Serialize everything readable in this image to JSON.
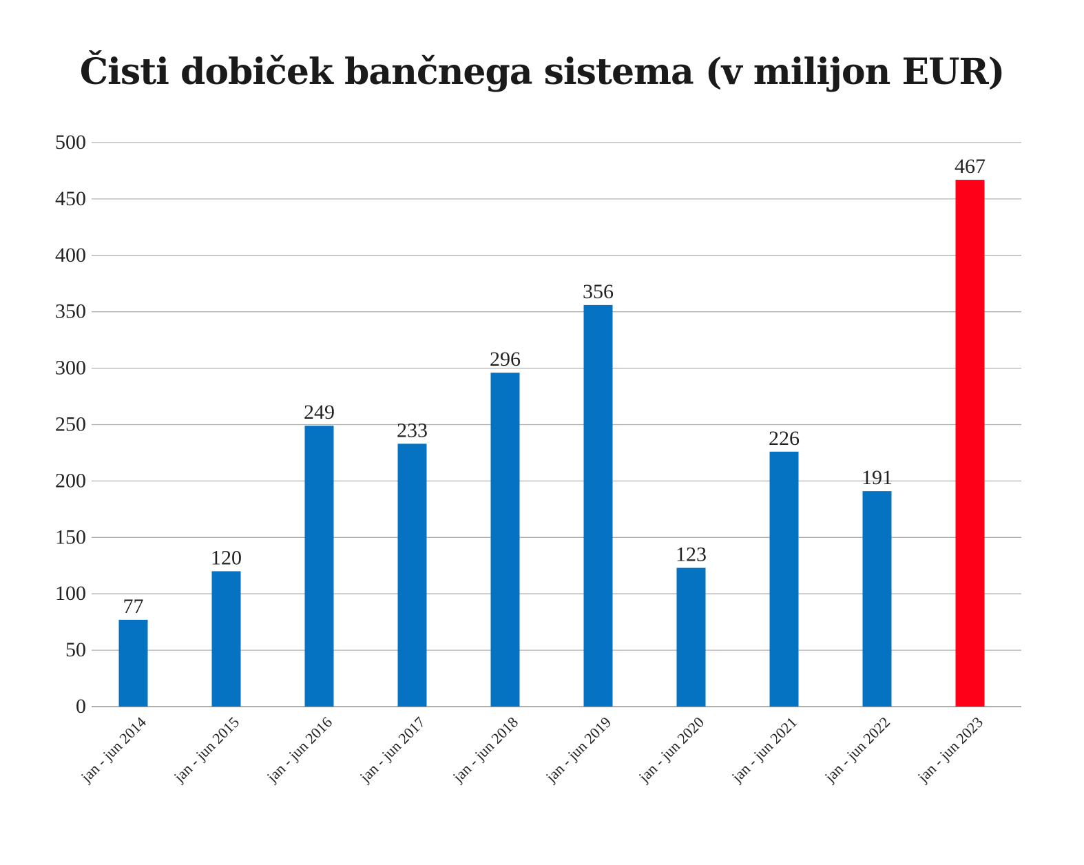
{
  "chart_data": {
    "type": "bar",
    "title": "Čisti dobiček bančnega sistema (v milijon EUR)",
    "xlabel": "",
    "ylabel": "",
    "categories": [
      "jan - jun 2014",
      "jan - jun 2015",
      "jan - jun 2016",
      "jan - jun 2017",
      "jan - jun 2018",
      "jan - jun 2019",
      "jan - jun 2020",
      "jan - jun 2021",
      "jan - jun 2022",
      "jan - jun 2023"
    ],
    "values": [
      77,
      120,
      249,
      233,
      296,
      356,
      123,
      226,
      191,
      467
    ],
    "data_labels": [
      "77",
      "120",
      "249",
      "233",
      "296",
      "356",
      "123",
      "226",
      "191",
      "467"
    ],
    "bar_colors": [
      "#0672C2",
      "#0672C2",
      "#0672C2",
      "#0672C2",
      "#0672C2",
      "#0672C2",
      "#0672C2",
      "#0672C2",
      "#0672C2",
      "#FF0019"
    ],
    "ylim": [
      0,
      500
    ],
    "yticks": [
      0,
      50,
      100,
      150,
      200,
      250,
      300,
      350,
      400,
      450,
      500
    ],
    "ytick_labels": [
      "0",
      "50",
      "100",
      "150",
      "200",
      "250",
      "300",
      "350",
      "400",
      "450",
      "500"
    ],
    "grid": true,
    "gridline_color": "#B0B0B0",
    "legend": "none"
  }
}
